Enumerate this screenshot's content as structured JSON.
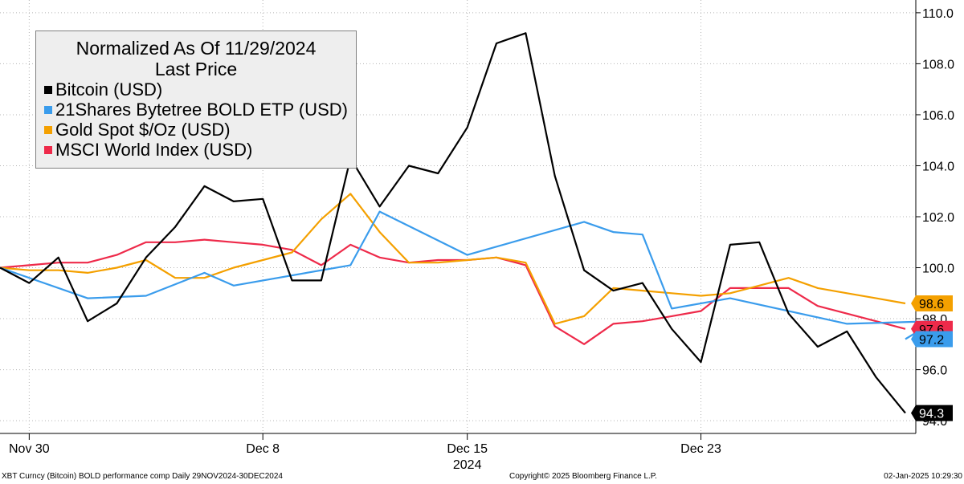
{
  "legend": {
    "title_line1": "Normalized As Of 11/29/2024",
    "title_line2": "Last Price"
  },
  "x_axis": {
    "year_label": "2024"
  },
  "footer": {
    "left": "XBT Curncy (Bitcoin) BOLD performance comp  Daily 29NOV2024-30DEC2024",
    "center": "Copyright© 2025 Bloomberg Finance L.P.",
    "right": "02-Jan-2025 10:29:30"
  },
  "chart_data": {
    "type": "line",
    "title": "Normalized As Of 11/29/2024",
    "subtitle": "Last Price",
    "x": [
      "2024-11-29",
      "2024-11-30",
      "2024-12-01",
      "2024-12-02",
      "2024-12-03",
      "2024-12-04",
      "2024-12-05",
      "2024-12-06",
      "2024-12-07",
      "2024-12-08",
      "2024-12-09",
      "2024-12-10",
      "2024-12-11",
      "2024-12-12",
      "2024-12-13",
      "2024-12-14",
      "2024-12-15",
      "2024-12-16",
      "2024-12-17",
      "2024-12-18",
      "2024-12-19",
      "2024-12-20",
      "2024-12-21",
      "2024-12-22",
      "2024-12-23",
      "2024-12-24",
      "2024-12-25",
      "2024-12-26",
      "2024-12-27",
      "2024-12-28",
      "2024-12-29",
      "2024-12-30"
    ],
    "x_ticks": [
      {
        "date": "2024-11-30",
        "label": "Nov 30"
      },
      {
        "date": "2024-12-08",
        "label": "Dec 8"
      },
      {
        "date": "2024-12-15",
        "label": "Dec 15"
      },
      {
        "date": "2024-12-23",
        "label": "Dec 23"
      }
    ],
    "ylim": [
      93.5,
      110.5
    ],
    "y_ticks": [
      "94.0",
      "96.0",
      "98.0",
      "100.0",
      "102.0",
      "104.0",
      "106.0",
      "108.0",
      "110.0"
    ],
    "grid": "vertical and horizontal dotted",
    "legend_position": "top-left",
    "series": [
      {
        "name": "Bitcoin (USD)",
        "color": "#000000",
        "last_label": "94.3",
        "values": [
          100.0,
          99.4,
          100.4,
          97.9,
          98.6,
          100.4,
          101.6,
          103.2,
          102.6,
          102.7,
          99.5,
          99.5,
          104.3,
          102.4,
          104.0,
          103.7,
          105.5,
          108.8,
          109.2,
          103.6,
          99.9,
          99.1,
          99.4,
          97.6,
          96.3,
          100.9,
          101.0,
          98.2,
          96.9,
          97.5,
          95.7,
          94.3
        ]
      },
      {
        "name": "21Shares Bytetree BOLD ETP (USD)",
        "color": "#3a9cec",
        "last_label": "97.2",
        "points": [
          [
            "2024-11-29",
            100.0
          ],
          [
            "2024-12-02",
            98.8
          ],
          [
            "2024-12-04",
            98.9
          ],
          [
            "2024-12-06",
            99.8
          ],
          [
            "2024-12-07",
            99.3
          ],
          [
            "2024-12-11",
            100.1
          ],
          [
            "2024-12-12",
            102.2
          ],
          [
            "2024-12-15",
            100.5
          ],
          [
            "2024-12-19",
            101.8
          ],
          [
            "2024-12-20",
            101.4
          ],
          [
            "2024-12-21",
            101.3
          ],
          [
            "2024-12-22",
            98.4
          ],
          [
            "2024-12-24",
            98.8
          ],
          [
            "2024-12-28",
            97.8
          ],
          [
            "2024-12-31",
            97.9
          ],
          [
            "2024-12-30",
            97.2
          ]
        ]
      },
      {
        "name": "Gold Spot $/Oz (USD)",
        "color": "#f4a000",
        "last_label": "98.6",
        "values": [
          100.0,
          99.9,
          99.9,
          99.8,
          100.0,
          100.3,
          99.6,
          99.6,
          100.0,
          100.3,
          100.6,
          101.9,
          102.9,
          101.4,
          100.2,
          100.2,
          100.3,
          100.4,
          100.2,
          97.8,
          98.1,
          99.2,
          99.1,
          99.0,
          98.9,
          99.0,
          99.3,
          99.6,
          99.2,
          99.0,
          98.8,
          98.6
        ]
      },
      {
        "name": "MSCI World Index (USD)",
        "color": "#ee2a4a",
        "last_label": "97.6",
        "values": [
          100.0,
          100.1,
          100.2,
          100.2,
          100.5,
          101.0,
          101.0,
          101.1,
          101.0,
          100.9,
          100.7,
          100.1,
          100.9,
          100.4,
          100.2,
          100.3,
          100.3,
          100.4,
          100.1,
          97.7,
          97.0,
          97.8,
          97.9,
          98.1,
          98.3,
          99.2,
          99.2,
          99.2,
          98.5,
          98.2,
          97.9,
          97.6
        ]
      }
    ]
  }
}
